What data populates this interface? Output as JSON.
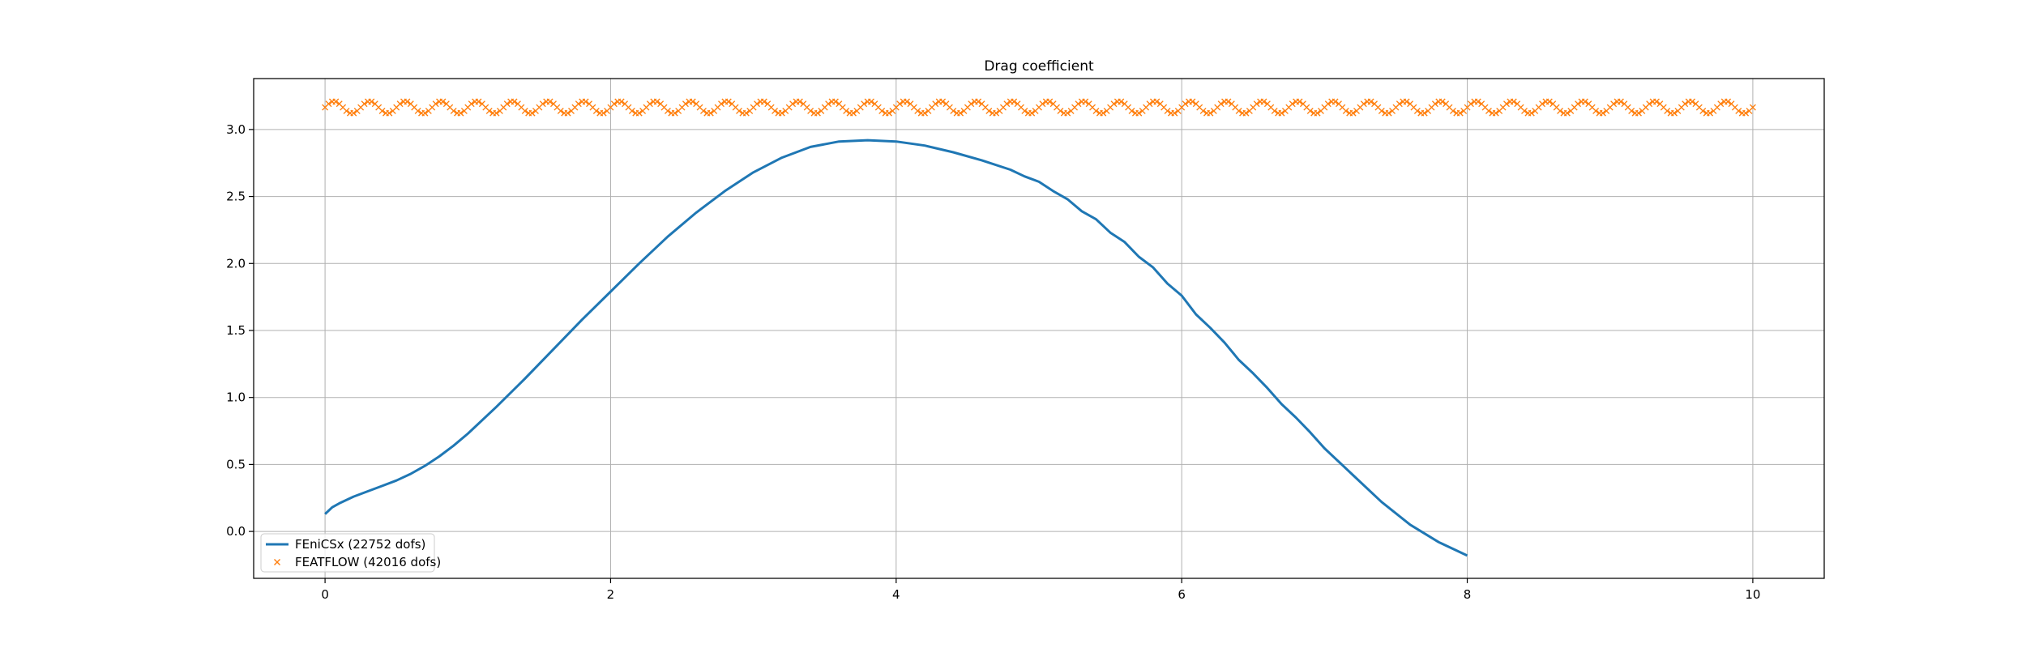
{
  "chart_data": {
    "type": "line",
    "title": "Drag coefficient",
    "xlabel": "",
    "ylabel": "",
    "xlim": [
      -0.5,
      10.5
    ],
    "ylim": [
      -0.35,
      3.38
    ],
    "xticks": [
      0,
      2,
      4,
      6,
      8,
      10
    ],
    "yticks": [
      0.0,
      0.5,
      1.0,
      1.5,
      2.0,
      2.5,
      3.0
    ],
    "grid": true,
    "legend_position": "lower-left",
    "colors": {
      "fenics": "#1f77b4",
      "featflow": "#ff7f0e"
    },
    "series": [
      {
        "name": "FEniCSx  (22752 dofs)",
        "style": "line",
        "x": [
          0.0,
          0.05,
          0.1,
          0.2,
          0.3,
          0.4,
          0.5,
          0.6,
          0.7,
          0.8,
          0.9,
          1.0,
          1.2,
          1.4,
          1.6,
          1.8,
          2.0,
          2.2,
          2.4,
          2.6,
          2.8,
          3.0,
          3.2,
          3.4,
          3.6,
          3.8,
          4.0,
          4.2,
          4.4,
          4.6,
          4.8,
          4.9,
          5.0,
          5.1,
          5.2,
          5.3,
          5.4,
          5.5,
          5.6,
          5.7,
          5.8,
          5.9,
          6.0,
          6.1,
          6.2,
          6.3,
          6.4,
          6.5,
          6.6,
          6.7,
          6.8,
          6.9,
          7.0,
          7.2,
          7.4,
          7.6,
          7.8,
          8.0
        ],
        "values": [
          0.13,
          0.18,
          0.21,
          0.26,
          0.3,
          0.34,
          0.38,
          0.43,
          0.49,
          0.56,
          0.64,
          0.73,
          0.93,
          1.14,
          1.36,
          1.58,
          1.79,
          2.0,
          2.2,
          2.38,
          2.54,
          2.68,
          2.79,
          2.87,
          2.91,
          2.92,
          2.91,
          2.88,
          2.83,
          2.77,
          2.7,
          2.65,
          2.61,
          2.54,
          2.48,
          2.39,
          2.33,
          2.23,
          2.16,
          2.05,
          1.97,
          1.85,
          1.76,
          1.62,
          1.52,
          1.41,
          1.28,
          1.18,
          1.07,
          0.95,
          0.85,
          0.74,
          0.62,
          0.42,
          0.22,
          0.05,
          -0.08,
          -0.18
        ]
      },
      {
        "name": "FEATFLOW (42016 dofs)",
        "style": "marker-x",
        "x_start": 0.0,
        "x_end": 10.0,
        "mean": 3.165,
        "amplitude": 0.045,
        "period": 0.25
      }
    ]
  }
}
